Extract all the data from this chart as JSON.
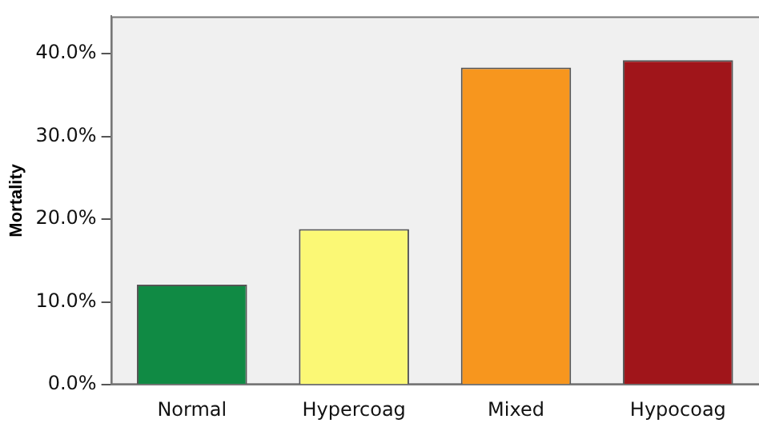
{
  "chart_data": {
    "type": "bar",
    "ylabel": "Mortality",
    "categories": [
      "Normal",
      "Hypercoag",
      "Mixed",
      "Hypocoag"
    ],
    "values": [
      12.1,
      18.8,
      38.3,
      39.2
    ],
    "colors": [
      "#108a44",
      "#fbf875",
      "#f7961e",
      "#a0151a"
    ],
    "ylim": [
      0,
      44.5
    ],
    "yticks": [
      {
        "value": 0,
        "label": "0.0%"
      },
      {
        "value": 10,
        "label": "10.0%"
      },
      {
        "value": 20,
        "label": "20.0%"
      },
      {
        "value": 30,
        "label": "30.0%"
      },
      {
        "value": 40,
        "label": "40.0%"
      }
    ],
    "grid": false,
    "legend": false
  }
}
